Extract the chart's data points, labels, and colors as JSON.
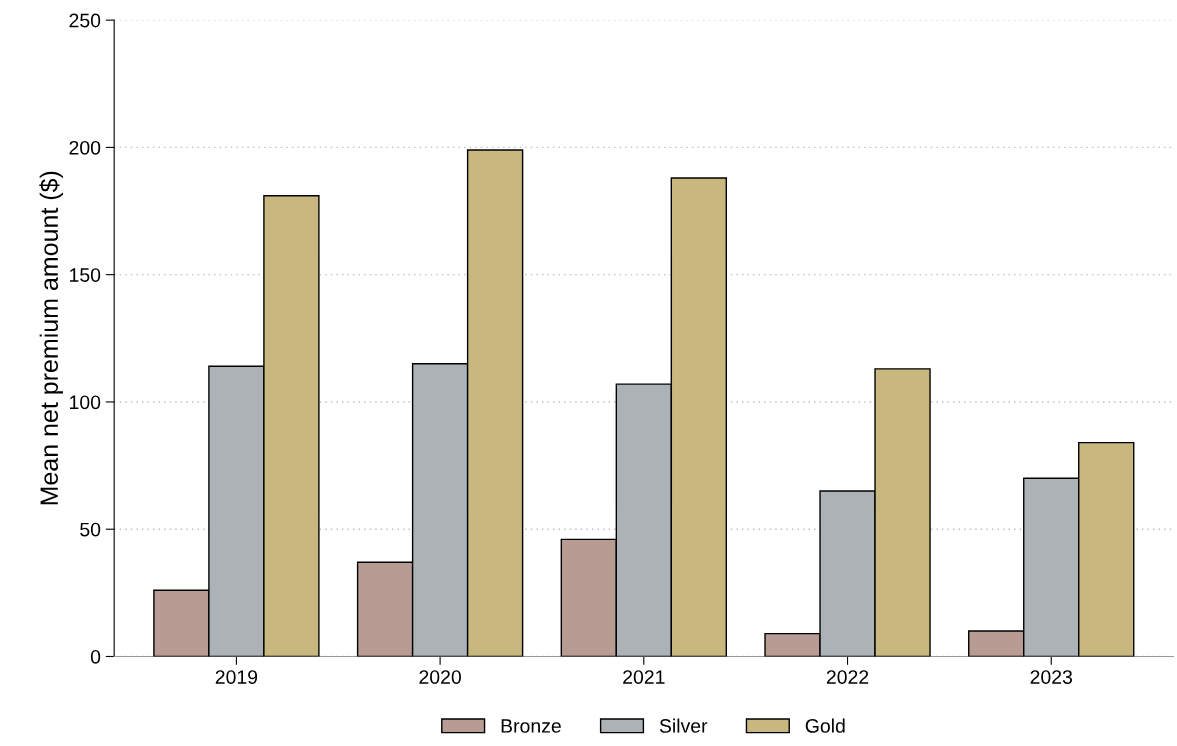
{
  "chart_data": {
    "type": "bar",
    "ylabel": "Mean net premium amount ($)",
    "categories": [
      "2019",
      "2020",
      "2021",
      "2022",
      "2023"
    ],
    "series": [
      {
        "name": "Bronze",
        "color": "#b89b92",
        "values": [
          26,
          37,
          46,
          9,
          10
        ]
      },
      {
        "name": "Silver",
        "color": "#adb2b6",
        "values": [
          114,
          115,
          107,
          65,
          70
        ]
      },
      {
        "name": "Gold",
        "color": "#c8b77e",
        "values": [
          181,
          199,
          188,
          113,
          84
        ]
      }
    ],
    "ylim": [
      0,
      250
    ],
    "yticks": [
      0,
      50,
      100,
      150,
      200,
      250
    ],
    "grid": "y",
    "legend": "bottom"
  }
}
